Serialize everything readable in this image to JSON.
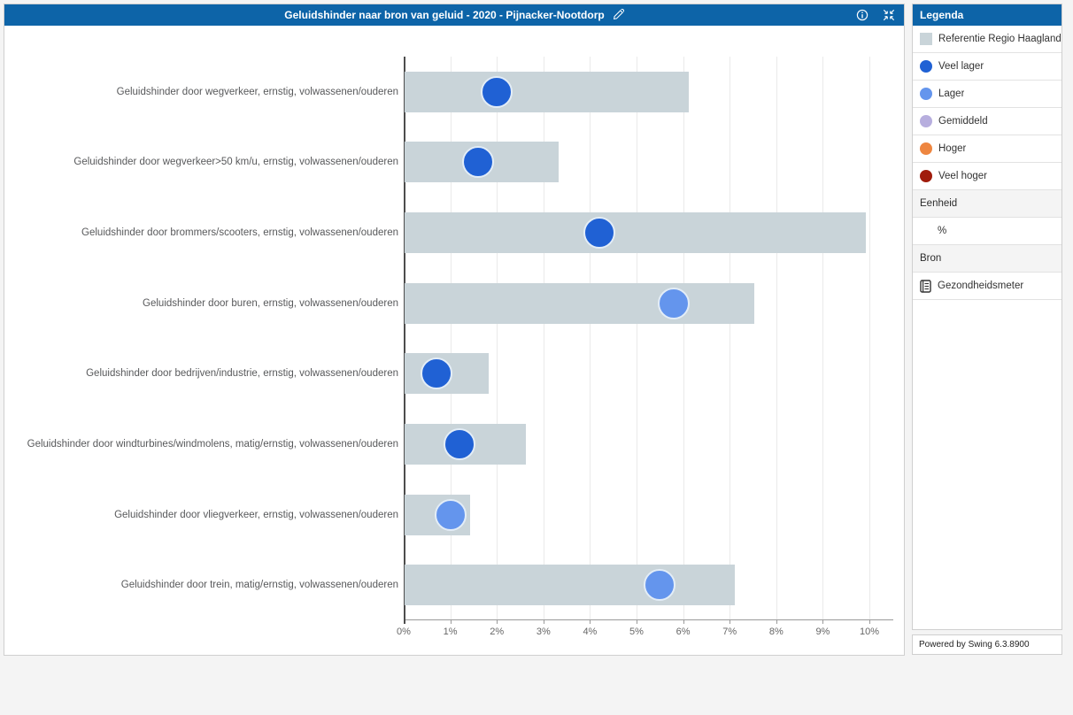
{
  "title_bar": {
    "title": "Geluidshinder naar bron van geluid - 2020 - Pijnacker-Nootdorp"
  },
  "colors": {
    "header_blue": "#0d64a8",
    "reference_bar": "#c9d4d9",
    "veel_lager": "#2061d4",
    "lager": "#6495ed",
    "gemiddeld": "#b7aede",
    "hoger": "#ee8640",
    "veel_hoger": "#a01c0c"
  },
  "legend": {
    "header": "Legenda",
    "items": [
      {
        "label": "Referentie Regio Haaglanden",
        "swatch": "square",
        "color_key": "reference_bar"
      },
      {
        "label": "Veel lager",
        "swatch": "circle",
        "color_key": "veel_lager"
      },
      {
        "label": "Lager",
        "swatch": "circle",
        "color_key": "lager"
      },
      {
        "label": "Gemiddeld",
        "swatch": "circle",
        "color_key": "gemiddeld"
      },
      {
        "label": "Hoger",
        "swatch": "circle",
        "color_key": "hoger"
      },
      {
        "label": "Veel hoger",
        "swatch": "circle",
        "color_key": "veel_hoger"
      }
    ],
    "eenheid_header": "Eenheid",
    "eenheid_value": "%",
    "bron_header": "Bron",
    "bron_value": "Gezondheidsmeter"
  },
  "footer": {
    "powered_by": "Powered by Swing 6.3.8900"
  },
  "chart_data": {
    "type": "bar",
    "orientation": "horizontal",
    "title": "Geluidshinder naar bron van geluid - 2020 - Pijnacker-Nootdorp",
    "unit": "%",
    "xlim": [
      0,
      10
    ],
    "x_ticks": [
      "0%",
      "1%",
      "2%",
      "3%",
      "4%",
      "5%",
      "6%",
      "7%",
      "8%",
      "9%",
      "10%"
    ],
    "grid": true,
    "legend_position": "right",
    "categories": [
      "Geluidshinder door wegverkeer, ernstig, volwassenen/ouderen",
      "Geluidshinder door wegverkeer>50 km/u, ernstig, volwassenen/ouderen",
      "Geluidshinder door brommers/scooters, ernstig, volwassenen/ouderen",
      "Geluidshinder door buren, ernstig, volwassenen/ouderen",
      "Geluidshinder door bedrijven/industrie, ernstig, volwassenen/ouderen",
      "Geluidshinder door windturbines/windmolens, matig/ernstig, volwassenen/ouderen",
      "Geluidshinder door vliegverkeer, ernstig, volwassenen/ouderen",
      "Geluidshinder door trein, matig/ernstig, volwassenen/ouderen"
    ],
    "series": [
      {
        "name": "Referentie Regio Haaglanden",
        "style": "bar",
        "values": [
          6.1,
          3.3,
          9.9,
          7.5,
          1.8,
          2.6,
          1.4,
          7.1
        ]
      },
      {
        "name": "Pijnacker-Nootdorp",
        "style": "dot",
        "values": [
          2.0,
          1.6,
          4.2,
          5.8,
          0.7,
          1.2,
          1.0,
          5.5
        ],
        "classes": [
          "veel_lager",
          "veel_lager",
          "veel_lager",
          "lager",
          "veel_lager",
          "veel_lager",
          "lager",
          "lager"
        ]
      }
    ]
  }
}
